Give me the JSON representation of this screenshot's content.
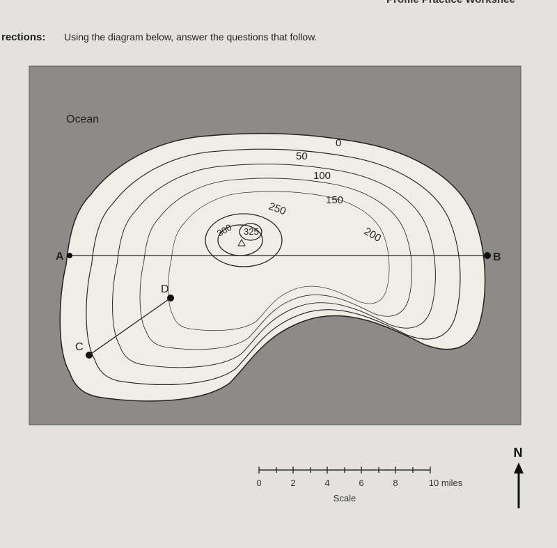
{
  "header": {
    "right": "Profile Practice Workshee"
  },
  "directions": {
    "label": "rections:",
    "text": "Using the diagram below, answer the questions that follow."
  },
  "map": {
    "region_label": "Ocean",
    "contours": [
      "0",
      "50",
      "100",
      "150",
      "200",
      "250",
      "300",
      "325"
    ],
    "points": [
      "A",
      "B",
      "C",
      "D"
    ],
    "scale": {
      "ticks": [
        "0",
        "2",
        "4",
        "6",
        "8",
        "10 miles"
      ],
      "title": "Scale"
    },
    "north": "N"
  }
}
